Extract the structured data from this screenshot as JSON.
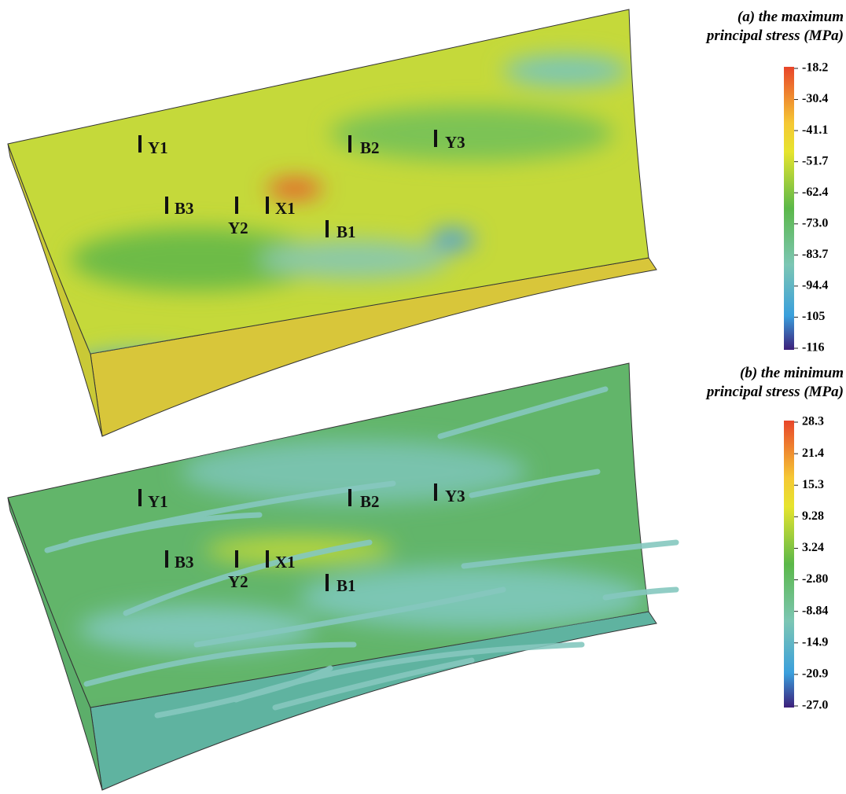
{
  "panels": [
    {
      "title": [
        "(a) the maximum",
        "principal stress (MPa)"
      ],
      "colorbar_labels": [
        "-18.2",
        "-30.4",
        "-41.1",
        "-51.7",
        "-62.4",
        "-73.0",
        "-83.7",
        "-94.4",
        "-105",
        "-116"
      ],
      "wells": [
        "Y1",
        "B2",
        "Y3",
        "B3",
        "Y2",
        "X1",
        "B1"
      ]
    },
    {
      "title": [
        "(b) the minimum",
        "principal stress (MPa)"
      ],
      "colorbar_labels": [
        "28.3",
        "21.4",
        "15.3",
        "9.28",
        "3.24",
        "-2.80",
        "-8.84",
        "-14.9",
        "-20.9",
        "-27.0"
      ],
      "wells": [
        "Y1",
        "B2",
        "Y3",
        "B3",
        "Y2",
        "X1",
        "B1"
      ]
    }
  ]
}
